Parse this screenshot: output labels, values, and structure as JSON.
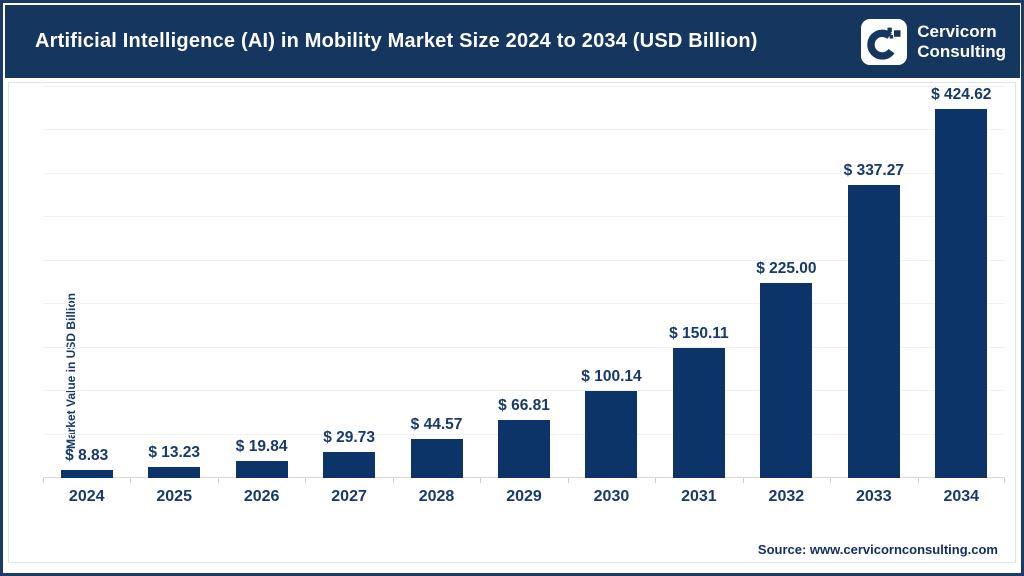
{
  "header": {
    "title": "Artificial Intelligence (AI) in Mobility Market Size 2024 to 2034 (USD Billion)",
    "logo": {
      "name": "cervicorn-logo",
      "line1": "Cervicorn",
      "line2": "Consulting"
    }
  },
  "chart_data": {
    "type": "bar",
    "title": "Artificial Intelligence (AI) in Mobility Market Size 2024 to 2034 (USD Billion)",
    "categories": [
      "2024",
      "2025",
      "2026",
      "2027",
      "2028",
      "2029",
      "2030",
      "2031",
      "2032",
      "2033",
      "2034"
    ],
    "values": [
      8.83,
      13.23,
      19.84,
      29.73,
      44.57,
      66.81,
      100.14,
      150.11,
      225.0,
      337.27,
      424.62
    ],
    "labels": [
      "$ 8.83",
      "$ 13.23",
      "$ 19.84",
      "$ 29.73",
      "$ 44.57",
      "$ 66.81",
      "$ 100.14",
      "$ 150.11",
      "$ 225.00",
      "$ 337.27",
      "$ 424.62"
    ],
    "xlabel": "",
    "ylabel": "Market Value in USD Billion",
    "ylim": [
      0,
      450
    ],
    "gridline_interval": 50,
    "grid": true,
    "legend": false,
    "y_tick_labels_visible": false
  },
  "footer": {
    "source": "Source: www.cervicornconsulting.com"
  },
  "colors": {
    "banner": "#15365f",
    "border": "#1b3a68",
    "bar": "#0d3468",
    "label_text": "#17396b",
    "gridline": "#f1f1f1",
    "axis_line": "#d9d9d9",
    "title_text": "#ffffff"
  }
}
